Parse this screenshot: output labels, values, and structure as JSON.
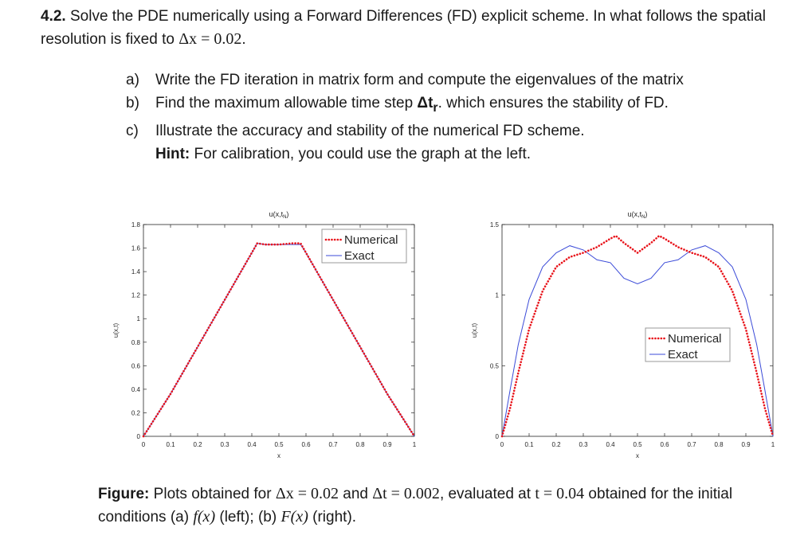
{
  "problem": {
    "number": "4.2.",
    "text_a": " Solve the PDE numerically using a Forward Differences (FD) explicit scheme. In what follows the spatial resolution is fixed to ",
    "dx_expr": "Δx = 0.02",
    "text_end": "."
  },
  "items": [
    {
      "label": "a)",
      "text": "Write the FD iteration in matrix form and compute the eigenvalues of the matrix"
    },
    {
      "label": "b)",
      "text_before": "Find the maximum allowable time step ",
      "symbol": "Δt",
      "sub": "r",
      "text_after": ". which ensures the stability of FD."
    },
    {
      "label": "c)",
      "text": "Illustrate the accuracy and stability of the numerical FD scheme."
    }
  ],
  "hint": {
    "label": "Hint:",
    "text": " For calibration, you could use the graph at the left."
  },
  "caption": {
    "label": "Figure:",
    "text_1": " Plots obtained for ",
    "dx": "Δx = 0.02",
    "and": " and ",
    "dt": "Δt = 0.002",
    "text_2": ", evaluated at ",
    "t": "t = 0.04",
    "text_3": " obtained for the initial conditions (a) ",
    "fx": "f(x)",
    "text_4": " (left); (b) ",
    "Fx": "F(x)",
    "text_5": " (right)."
  },
  "colors": {
    "numerical": "#e8141b",
    "exact": "#3b4bd8"
  },
  "chart_data": [
    {
      "type": "line",
      "title": "u(x,t_N)",
      "xlabel": "x",
      "ylabel": "u(x,t)",
      "xlim": [
        0,
        1
      ],
      "ylim": [
        0,
        1.8
      ],
      "xticks": [
        "0",
        "0.1",
        "0.2",
        "0.3",
        "0.4",
        "0.5",
        "0.6",
        "0.7",
        "0.8",
        "0.9",
        "1"
      ],
      "yticks": [
        "0",
        "0.2",
        "0.4",
        "0.6",
        "0.8",
        "1",
        "1.2",
        "1.4",
        "1.6",
        "1.8"
      ],
      "legend_position": "top-right",
      "series": [
        {
          "name": "Numerical",
          "style": "dotted",
          "x": [
            0,
            0.1,
            0.2,
            0.3,
            0.4,
            0.42,
            0.45,
            0.5,
            0.55,
            0.58,
            0.6,
            0.7,
            0.8,
            0.9,
            1
          ],
          "y": [
            0,
            0.36,
            0.76,
            1.16,
            1.56,
            1.64,
            1.63,
            1.63,
            1.64,
            1.64,
            1.56,
            1.16,
            0.76,
            0.36,
            0
          ]
        },
        {
          "name": "Exact",
          "style": "solid",
          "x": [
            0,
            0.1,
            0.2,
            0.3,
            0.4,
            0.42,
            0.45,
            0.5,
            0.55,
            0.58,
            0.6,
            0.7,
            0.8,
            0.9,
            1
          ],
          "y": [
            0,
            0.36,
            0.76,
            1.16,
            1.56,
            1.64,
            1.63,
            1.63,
            1.63,
            1.63,
            1.56,
            1.16,
            0.76,
            0.36,
            0
          ]
        }
      ]
    },
    {
      "type": "line",
      "title": "u(x,t_N)",
      "xlabel": "x",
      "ylabel": "u(x,t)",
      "xlim": [
        0,
        1
      ],
      "ylim": [
        0,
        1.5
      ],
      "xticks": [
        "0",
        "0.1",
        "0.2",
        "0.3",
        "0.4",
        "0.5",
        "0.6",
        "0.7",
        "0.8",
        "0.9",
        "1"
      ],
      "yticks": [
        "0",
        "0.5",
        "1",
        "1.5"
      ],
      "legend_position": "center-right",
      "series": [
        {
          "name": "Numerical",
          "style": "dotted",
          "x": [
            0,
            0.03,
            0.06,
            0.1,
            0.15,
            0.2,
            0.25,
            0.3,
            0.35,
            0.4,
            0.42,
            0.45,
            0.5,
            0.55,
            0.58,
            0.6,
            0.65,
            0.7,
            0.75,
            0.8,
            0.85,
            0.9,
            0.94,
            0.97,
            1
          ],
          "y": [
            0,
            0.2,
            0.45,
            0.76,
            1.03,
            1.2,
            1.27,
            1.3,
            1.34,
            1.4,
            1.42,
            1.37,
            1.3,
            1.37,
            1.42,
            1.4,
            1.34,
            1.3,
            1.27,
            1.2,
            1.03,
            0.76,
            0.45,
            0.2,
            0
          ]
        },
        {
          "name": "Exact",
          "style": "solid",
          "x": [
            0,
            0.03,
            0.06,
            0.1,
            0.15,
            0.2,
            0.25,
            0.3,
            0.35,
            0.4,
            0.45,
            0.5,
            0.55,
            0.6,
            0.65,
            0.7,
            0.75,
            0.8,
            0.85,
            0.9,
            0.94,
            0.97,
            1
          ],
          "y": [
            0,
            0.33,
            0.65,
            0.97,
            1.2,
            1.3,
            1.35,
            1.32,
            1.25,
            1.23,
            1.12,
            1.08,
            1.12,
            1.23,
            1.25,
            1.32,
            1.35,
            1.3,
            1.2,
            0.97,
            0.65,
            0.33,
            0
          ]
        }
      ]
    }
  ]
}
